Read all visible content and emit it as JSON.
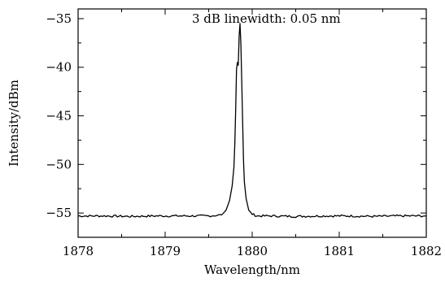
{
  "chart_data": {
    "type": "line",
    "title": "",
    "annotation": "3 dB linewidth: 0.05 nm",
    "xlabel": "Wavelength/nm",
    "ylabel": "Intensity/dBm",
    "xlim": [
      1878,
      1882
    ],
    "ylim": [
      -57.5,
      -34
    ],
    "xticks": [
      1878,
      1879,
      1880,
      1881,
      1882
    ],
    "xtick_labels": [
      "1878",
      "1879",
      "1880",
      "1881",
      "1882"
    ],
    "yticks": [
      -55,
      -50,
      -45,
      -40,
      -35
    ],
    "ytick_labels": [
      "−55",
      "−50",
      "−45",
      "−40",
      "−35"
    ],
    "grid": false,
    "series": [
      {
        "x": [
          1878.0,
          1878.3,
          1878.6,
          1878.9,
          1879.2,
          1879.5,
          1879.65,
          1879.7,
          1879.74,
          1879.77,
          1879.79,
          1879.8,
          1879.81,
          1879.82,
          1879.83,
          1879.84,
          1879.85,
          1879.86,
          1879.87,
          1879.88,
          1879.89,
          1879.9,
          1879.91,
          1879.93,
          1879.96,
          1880.0,
          1880.05,
          1880.2,
          1880.5,
          1880.8,
          1881.1,
          1881.4,
          1881.7,
          1882.0
        ],
        "y": [
          -55.3,
          -55.3,
          -55.35,
          -55.3,
          -55.3,
          -55.3,
          -55.2,
          -54.7,
          -53.7,
          -52.2,
          -50.3,
          -48.0,
          -44.5,
          -40.2,
          -39.5,
          -39.8,
          -36.8,
          -35.5,
          -37.6,
          -41.5,
          -45.5,
          -49.5,
          -51.8,
          -53.5,
          -54.7,
          -55.1,
          -55.3,
          -55.3,
          -55.35,
          -55.3,
          -55.3,
          -55.35,
          -55.3,
          -55.3
        ]
      }
    ]
  }
}
